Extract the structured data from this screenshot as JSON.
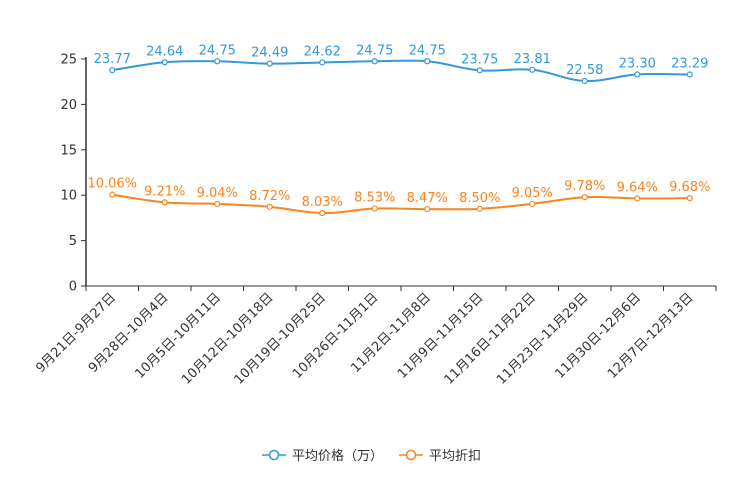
{
  "chart_data": {
    "type": "line",
    "categories": [
      "9月21日-9月27日",
      "9月28日-10月4日",
      "10月5日-10月11日",
      "10月12日-10月18日",
      "10月19日-10月25日",
      "10月26日-11月1日",
      "11月2日-11月8日",
      "11月9日-11月15日",
      "11月16日-11月22日",
      "11月23日-11月29日",
      "11月30日-12月6日",
      "12月7日-12月13日"
    ],
    "ylim": [
      0,
      25
    ],
    "yticks": [
      0,
      5,
      10,
      15,
      20,
      25
    ],
    "series": [
      {
        "name": "平均价格（万）",
        "color": "#3398DB",
        "values": [
          23.77,
          24.64,
          24.75,
          24.49,
          24.62,
          24.75,
          24.75,
          23.75,
          23.81,
          22.58,
          23.3,
          23.29
        ],
        "labels": [
          "23.77",
          "24.64",
          "24.75",
          "24.49",
          "24.62",
          "24.75",
          "24.75",
          "23.75",
          "23.81",
          "22.58",
          "23.30",
          "23.29"
        ]
      },
      {
        "name": "平均折扣",
        "color": "#F98420",
        "values": [
          10.06,
          9.21,
          9.04,
          8.72,
          8.03,
          8.53,
          8.47,
          8.5,
          9.05,
          9.78,
          9.64,
          9.68
        ],
        "labels": [
          "10.06%",
          "9.21%",
          "9.04%",
          "8.72%",
          "8.03%",
          "8.53%",
          "8.47%",
          "8.50%",
          "9.05%",
          "9.78%",
          "9.64%",
          "9.68%"
        ]
      }
    ]
  }
}
